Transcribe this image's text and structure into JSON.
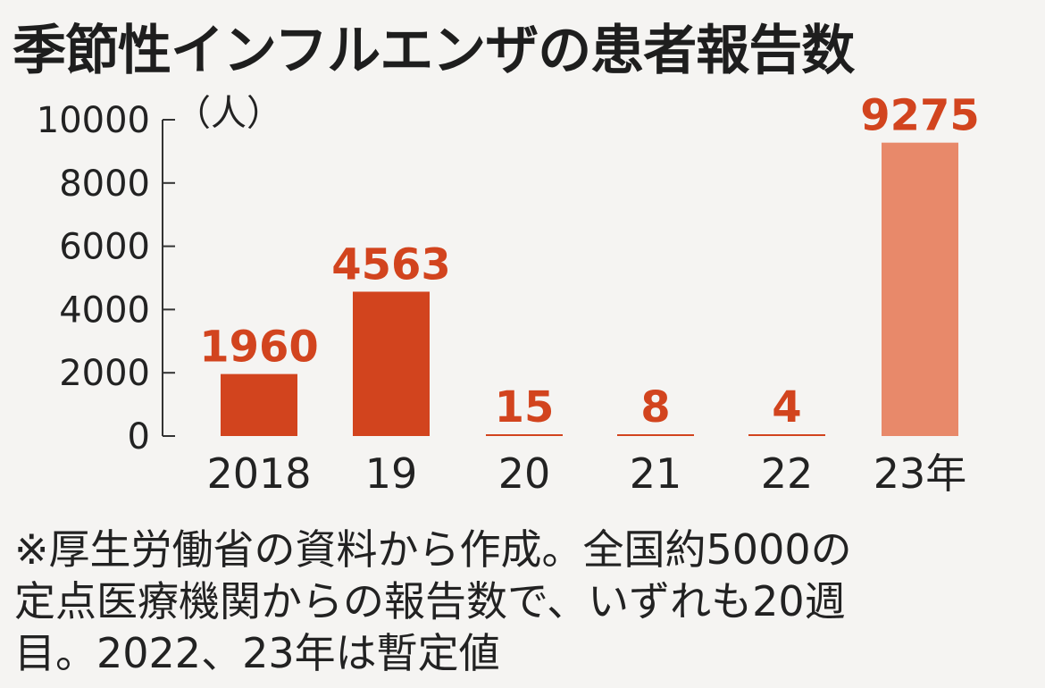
{
  "title": "季節性インフルエンザの患者報告数",
  "colors": {
    "bar": "#d2441e",
    "bar_highlight": "#e8896a",
    "value_label": "#d2441e",
    "axis": "#333333"
  },
  "chart_data": {
    "type": "bar",
    "title": "季節性インフルエンザの患者報告数",
    "unit_label": "（人）",
    "categories": [
      "2018",
      "19",
      "20",
      "21",
      "22",
      "23年"
    ],
    "values": [
      1960,
      4563,
      15,
      8,
      4,
      9275
    ],
    "value_labels": [
      "1960",
      "4563",
      "15",
      "8",
      "4",
      "9275"
    ],
    "highlight_index": 5,
    "ylim": [
      0,
      10000
    ],
    "yticks": [
      0,
      2000,
      4000,
      6000,
      8000,
      10000
    ],
    "ytick_labels": [
      "0",
      "2000",
      "4000",
      "6000",
      "8000",
      "10000"
    ],
    "grid": false,
    "legend": "none"
  },
  "footnote": {
    "lines": [
      "※厚生労働省の資料から作成。全国約5000の",
      "定点医療機関からの報告数で、いずれも20週",
      "目。2022、23年は暫定値"
    ]
  }
}
